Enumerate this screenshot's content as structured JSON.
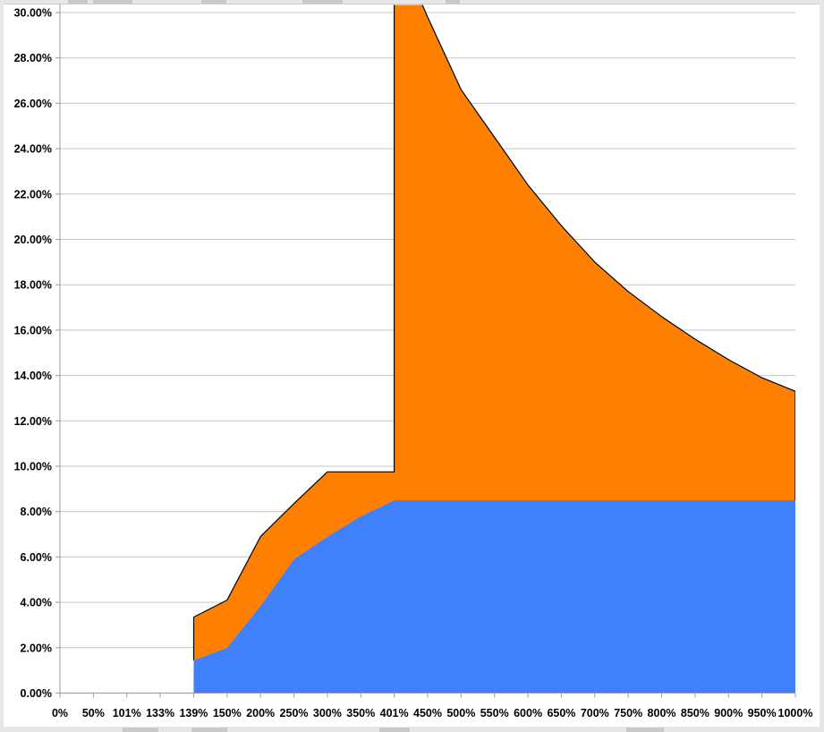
{
  "chart_data": {
    "type": "area",
    "stacked": true,
    "title": "",
    "legend": "none",
    "grid": true,
    "x_categories": [
      "0%",
      "50%",
      "101%",
      "133%",
      "139%",
      "150%",
      "200%",
      "250%",
      "300%",
      "350%",
      "401%",
      "450%",
      "500%",
      "550%",
      "600%",
      "650%",
      "700%",
      "750%",
      "800%",
      "850%",
      "900%",
      "950%",
      "1000%"
    ],
    "y_tick_labels": [
      "0.00%",
      "2.00%",
      "4.00%",
      "6.00%",
      "8.00%",
      "10.00%",
      "12.00%",
      "14.00%",
      "16.00%",
      "18.00%",
      "20.00%",
      "22.00%",
      "24.00%",
      "26.00%",
      "28.00%",
      "30.00%"
    ],
    "ylim": [
      0,
      30
    ],
    "y_tick_step": 2,
    "first_category_with_data": "139%",
    "series": [
      {
        "name": "lower-blue-area",
        "color": "#4080FA",
        "values_pct": [
          null,
          null,
          null,
          null,
          1.45,
          2.0,
          3.85,
          5.9,
          6.9,
          7.8,
          8.5,
          8.5,
          8.5,
          8.5,
          8.5,
          8.5,
          8.5,
          8.5,
          8.5,
          8.5,
          8.5,
          8.5,
          8.5
        ]
      },
      {
        "name": "upper-orange-area",
        "color": "#FF7F00",
        "outline_color": "#000000",
        "stacked_top_pct": [
          null,
          null,
          null,
          null,
          3.35,
          4.1,
          6.9,
          8.35,
          9.75,
          9.75,
          9.75,
          29.8,
          26.6,
          24.5,
          22.4,
          20.6,
          19.0,
          17.7,
          16.6,
          15.6,
          14.7,
          13.9,
          13.3
        ],
        "vertical_jump": {
          "at_category": "401%",
          "from_pct": 9.75,
          "to_pct": 33.2,
          "clipped_at_plot_top": true
        }
      }
    ]
  },
  "axes": {
    "axis_color": "#9b9b9b",
    "gridline_color": "#c6c6c6",
    "plot_top_border_color": "#cdcdcd",
    "label_color": "#000000"
  },
  "frame": {
    "color": "#e7e7e7",
    "patch_color": "#c9c9c9",
    "top_patches": [
      [
        76,
        22
      ],
      [
        104,
        44
      ],
      [
        225,
        28
      ],
      [
        338,
        45
      ],
      [
        498,
        16
      ]
    ],
    "bottom_patches": [
      [
        137,
        40
      ],
      [
        214,
        40
      ],
      [
        424,
        34
      ],
      [
        700,
        42
      ]
    ]
  }
}
